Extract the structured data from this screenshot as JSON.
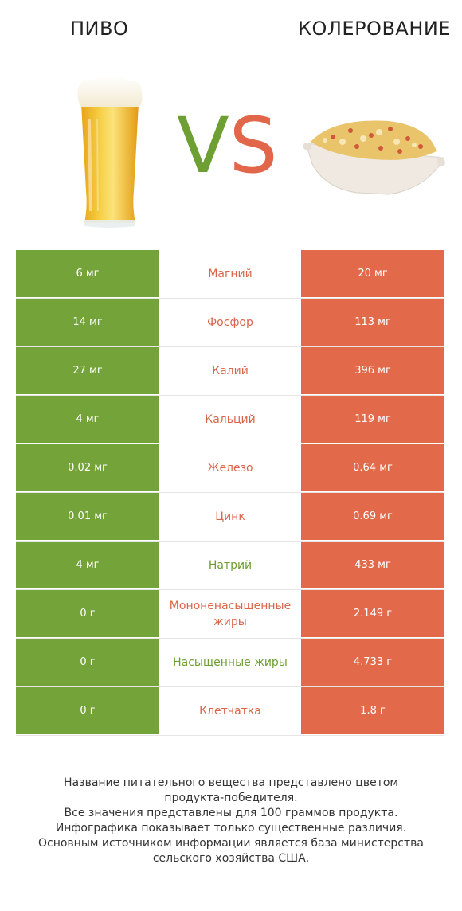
{
  "header": {
    "left_title": "ПИВО",
    "right_title": "КОЛЕРОВАНИЕ",
    "vs_v": "V",
    "vs_s": "S"
  },
  "colors": {
    "left_product": "#74a33a",
    "right_product": "#e26a4b"
  },
  "rows": [
    {
      "left": "6 мг",
      "nutrient": "Магний",
      "right": "20 мг",
      "winner": "right"
    },
    {
      "left": "14 мг",
      "nutrient": "Фосфор",
      "right": "113 мг",
      "winner": "right"
    },
    {
      "left": "27 мг",
      "nutrient": "Калий",
      "right": "396 мг",
      "winner": "right"
    },
    {
      "left": "4 мг",
      "nutrient": "Кальций",
      "right": "119 мг",
      "winner": "right"
    },
    {
      "left": "0.02 мг",
      "nutrient": "Железо",
      "right": "0.64 мг",
      "winner": "right"
    },
    {
      "left": "0.01 мг",
      "nutrient": "Цинк",
      "right": "0.69 мг",
      "winner": "right"
    },
    {
      "left": "4 мг",
      "nutrient": "Натрий",
      "right": "433 мг",
      "winner": "left"
    },
    {
      "left": "0 г",
      "nutrient": "Мононенасыщенные жиры",
      "right": "2.149 г",
      "winner": "right"
    },
    {
      "left": "0 г",
      "nutrient": "Насыщенные жиры",
      "right": "4.733 г",
      "winner": "left"
    },
    {
      "left": "0 г",
      "nutrient": "Клетчатка",
      "right": "1.8 г",
      "winner": "right"
    }
  ],
  "footer": {
    "line1": "Название питательного вещества представлено цветом",
    "line2": "продукта-победителя.",
    "line3": "Все значения представлены для 100 граммов продукта.",
    "line4": "Инфографика показывает только существенные различия.",
    "line5": "Основным источником информации является база министерства",
    "line6": "сельского хозяйства США."
  }
}
